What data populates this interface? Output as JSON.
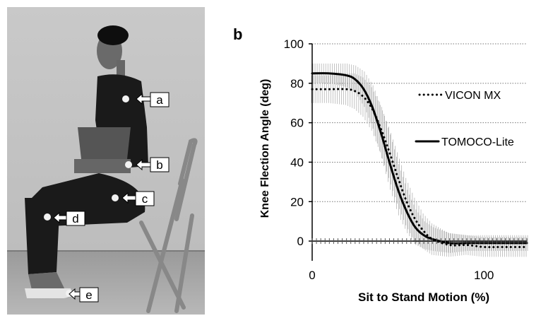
{
  "panel_a": {
    "letter": "a",
    "markers": [
      {
        "label": "a"
      },
      {
        "label": "b"
      },
      {
        "label": "c"
      },
      {
        "label": "d"
      },
      {
        "label": "e"
      }
    ]
  },
  "panel_b": {
    "letter": "b"
  },
  "chart_data": {
    "type": "line",
    "title": "",
    "xlabel": "Sit to Stand Motion (%)",
    "ylabel": "Knee Flection Angle (deg)",
    "xlim": [
      0,
      125
    ],
    "ylim": [
      -10,
      100
    ],
    "xticks": [
      0,
      100
    ],
    "yticks": [
      0,
      20,
      40,
      60,
      80,
      100
    ],
    "grid": "horizontal dotted",
    "legend_position": "right",
    "series": [
      {
        "name": "VICON MX",
        "style": "dotted",
        "color": "#000000",
        "x": [
          0,
          10,
          20,
          25,
          30,
          35,
          40,
          45,
          50,
          55,
          60,
          65,
          70,
          80,
          90,
          100,
          110,
          125
        ],
        "y": [
          77,
          77,
          77,
          76,
          73,
          67,
          57,
          45,
          32,
          20,
          11,
          5,
          1,
          -2,
          -2,
          -3,
          -3,
          -3
        ],
        "sd": [
          7,
          7,
          8,
          9,
          10,
          11,
          12,
          13,
          13,
          12,
          11,
          9,
          8,
          6,
          5,
          5,
          5,
          5
        ]
      },
      {
        "name": "TOMOCO-Lite",
        "style": "solid",
        "color": "#000000",
        "x": [
          0,
          10,
          20,
          25,
          30,
          35,
          40,
          45,
          50,
          55,
          60,
          65,
          70,
          80,
          90,
          100,
          110,
          125
        ],
        "y": [
          85,
          85,
          84,
          82,
          77,
          68,
          55,
          40,
          26,
          15,
          7,
          3,
          1,
          -1,
          -1,
          -1,
          -1,
          -1
        ],
        "sd": [
          5,
          5,
          6,
          7,
          9,
          11,
          13,
          14,
          13,
          11,
          9,
          7,
          6,
          5,
          4,
          4,
          4,
          4
        ]
      }
    ]
  }
}
